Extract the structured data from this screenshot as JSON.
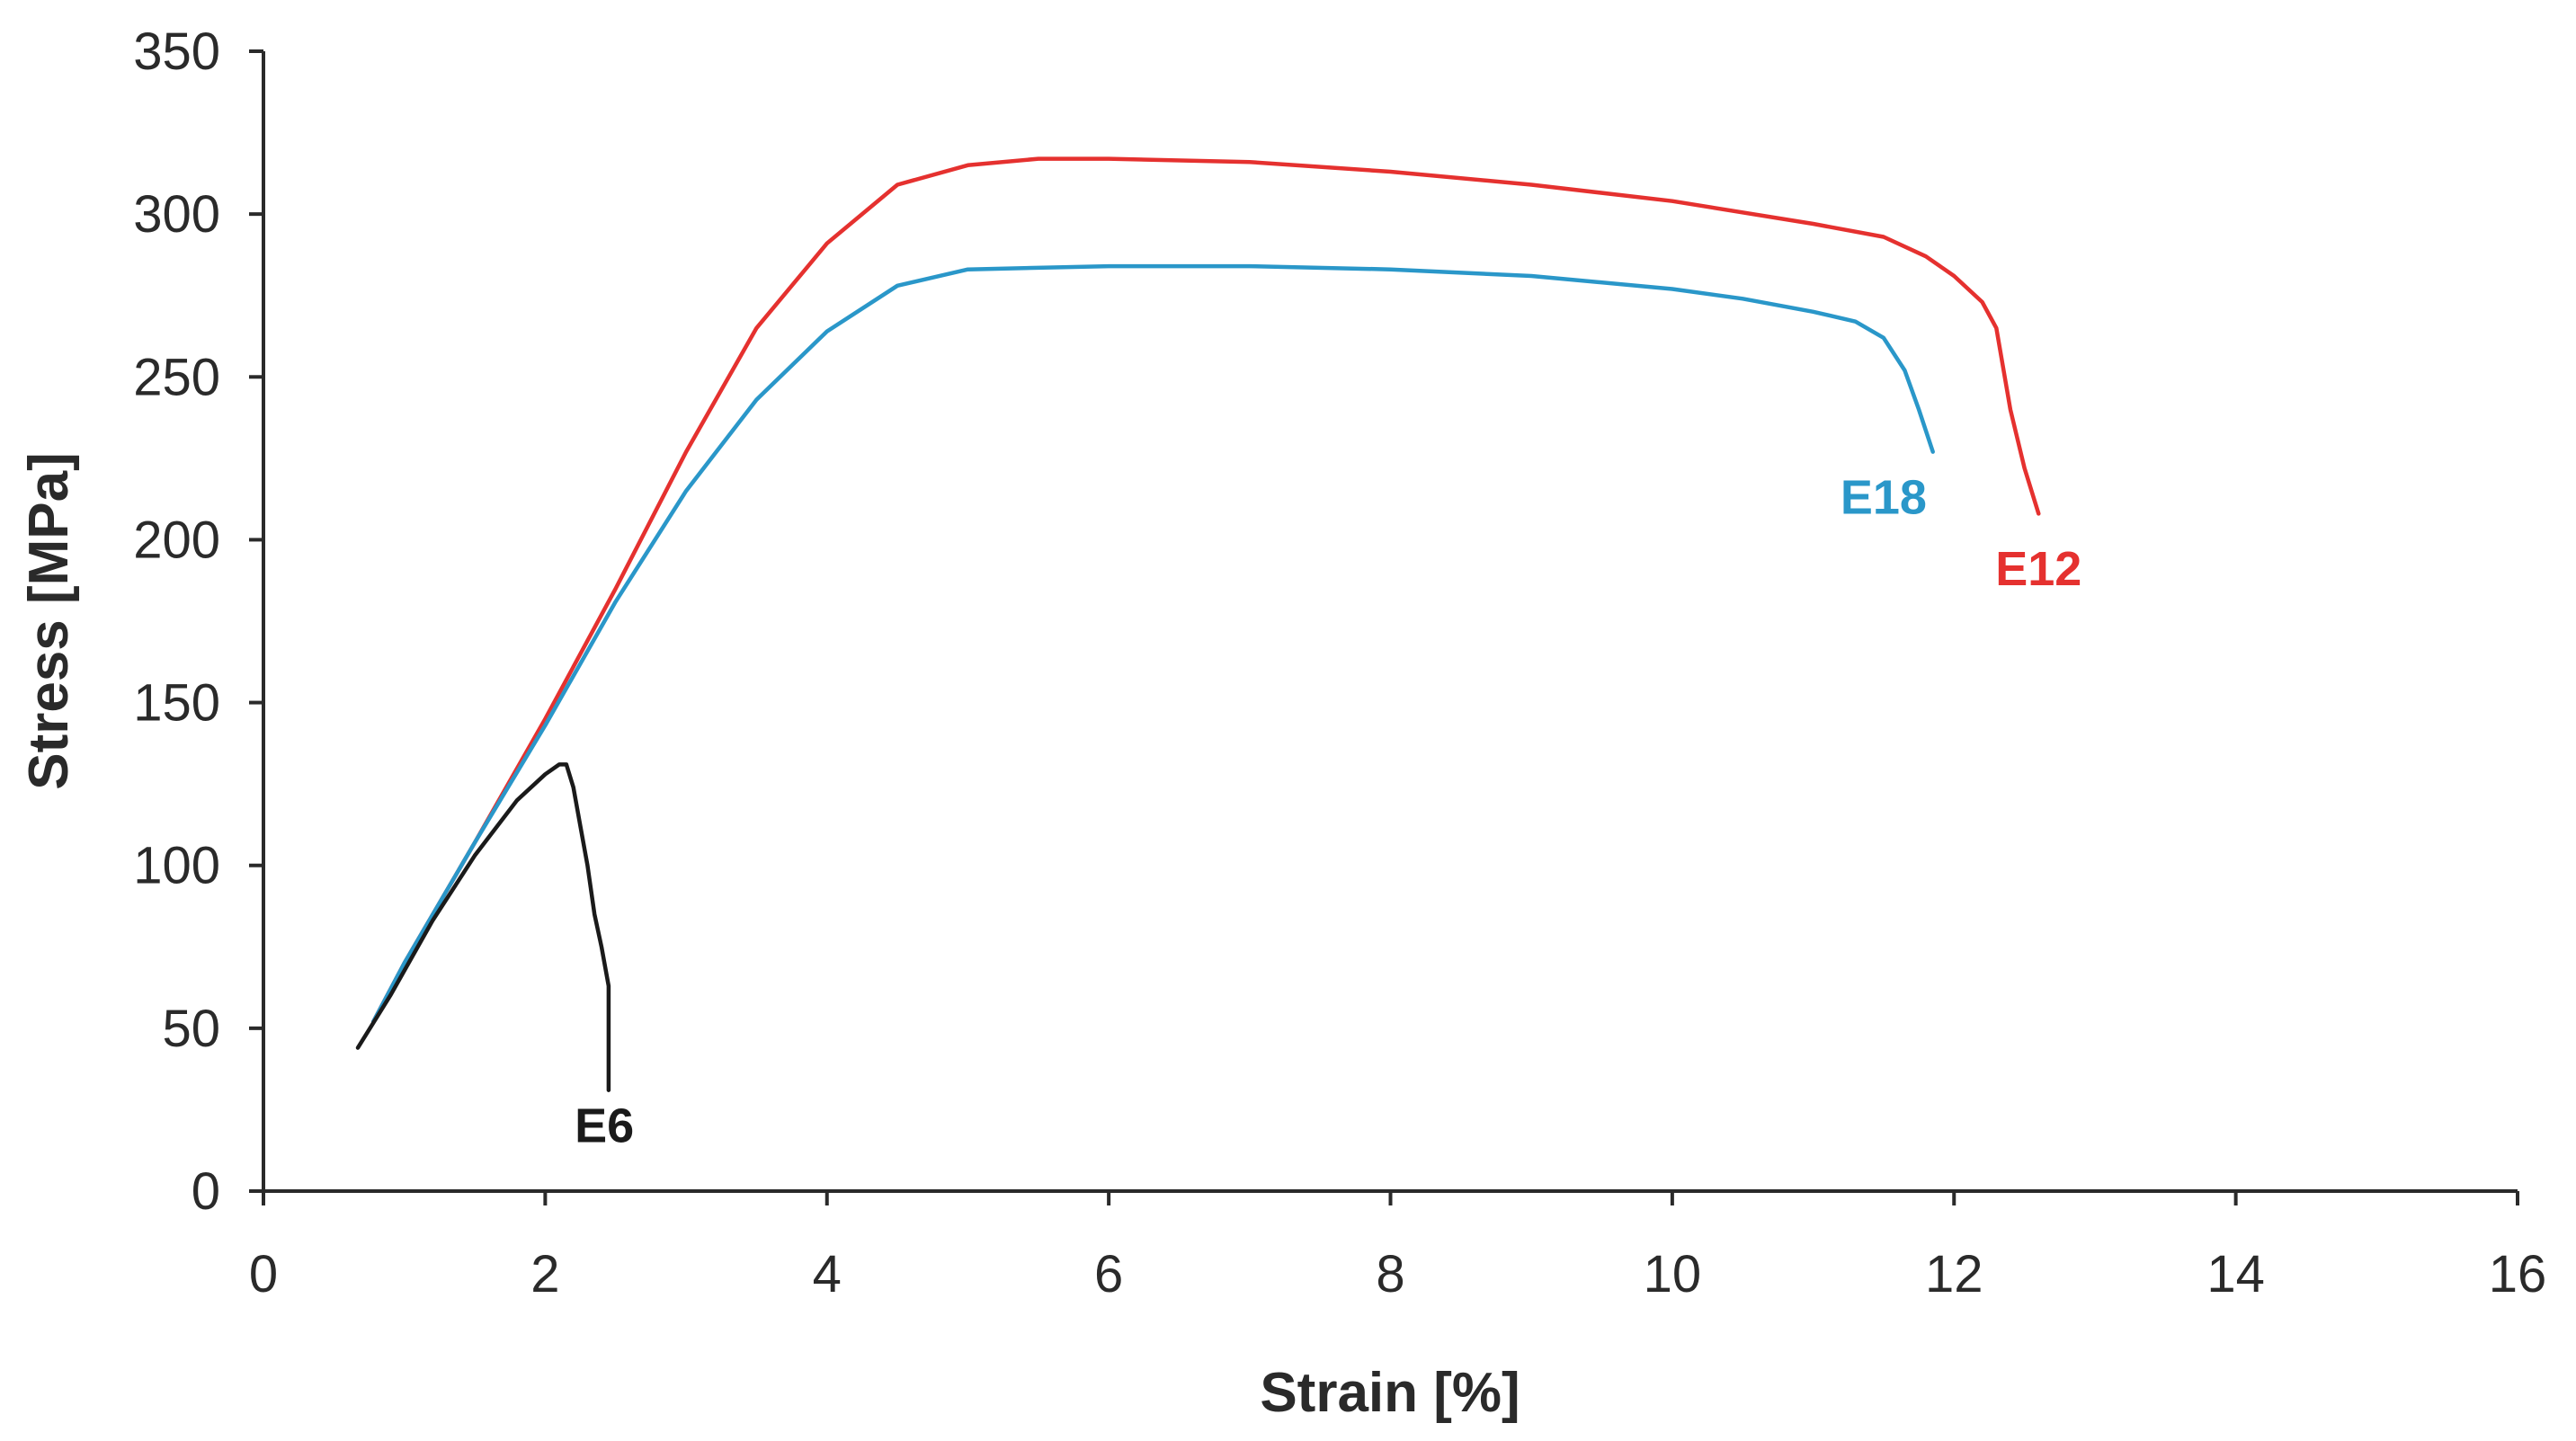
{
  "chart_data": {
    "type": "line",
    "xlabel": "Strain [%]",
    "ylabel": "Stress [MPa]",
    "xlim": [
      0,
      16
    ],
    "ylim": [
      0,
      350
    ],
    "xticks": [
      0,
      2,
      4,
      6,
      8,
      10,
      12,
      14,
      16
    ],
    "yticks": [
      0,
      50,
      100,
      150,
      200,
      250,
      300,
      350
    ],
    "grid": false,
    "series": [
      {
        "name": "E12",
        "color": "#e5312f",
        "x": [
          0.78,
          1.0,
          1.5,
          2.0,
          2.5,
          3.0,
          3.5,
          4.0,
          4.5,
          5.0,
          5.5,
          6.0,
          7.0,
          8.0,
          9.0,
          10.0,
          11.0,
          11.5,
          11.8,
          12.0,
          12.2,
          12.3,
          12.4,
          12.5,
          12.6
        ],
        "y": [
          52,
          70,
          107,
          145,
          185,
          227,
          265,
          291,
          309,
          315,
          317,
          317,
          316,
          313,
          309,
          304,
          297,
          293,
          287,
          281,
          273,
          265,
          240,
          222,
          208
        ]
      },
      {
        "name": "E18",
        "color": "#2a97c9",
        "x": [
          0.78,
          1.0,
          1.5,
          2.0,
          2.5,
          3.0,
          3.5,
          4.0,
          4.5,
          5.0,
          6.0,
          7.0,
          8.0,
          9.0,
          10.0,
          10.5,
          11.0,
          11.3,
          11.5,
          11.65,
          11.75,
          11.85
        ],
        "y": [
          52,
          70,
          107,
          143,
          181,
          215,
          243,
          264,
          278,
          283,
          284,
          284,
          283,
          281,
          277,
          274,
          270,
          267,
          262,
          252,
          240,
          227
        ]
      },
      {
        "name": "E6",
        "color": "#1a1a1a",
        "x": [
          0.67,
          0.9,
          1.2,
          1.5,
          1.8,
          2.0,
          2.1,
          2.15,
          2.2,
          2.25,
          2.3,
          2.35,
          2.4,
          2.45,
          2.45
        ],
        "y": [
          44,
          60,
          83,
          103,
          120,
          128,
          131,
          131,
          124,
          112,
          100,
          85,
          75,
          63,
          31
        ]
      }
    ],
    "annotations": [
      {
        "text": "E18",
        "x": 11.5,
        "y": 208,
        "color": "#2a97c9"
      },
      {
        "text": "E12",
        "x": 12.6,
        "y": 186,
        "color": "#e5312f"
      },
      {
        "text": "E6",
        "x": 2.42,
        "y": 15,
        "color": "#1a1a1a"
      }
    ]
  }
}
